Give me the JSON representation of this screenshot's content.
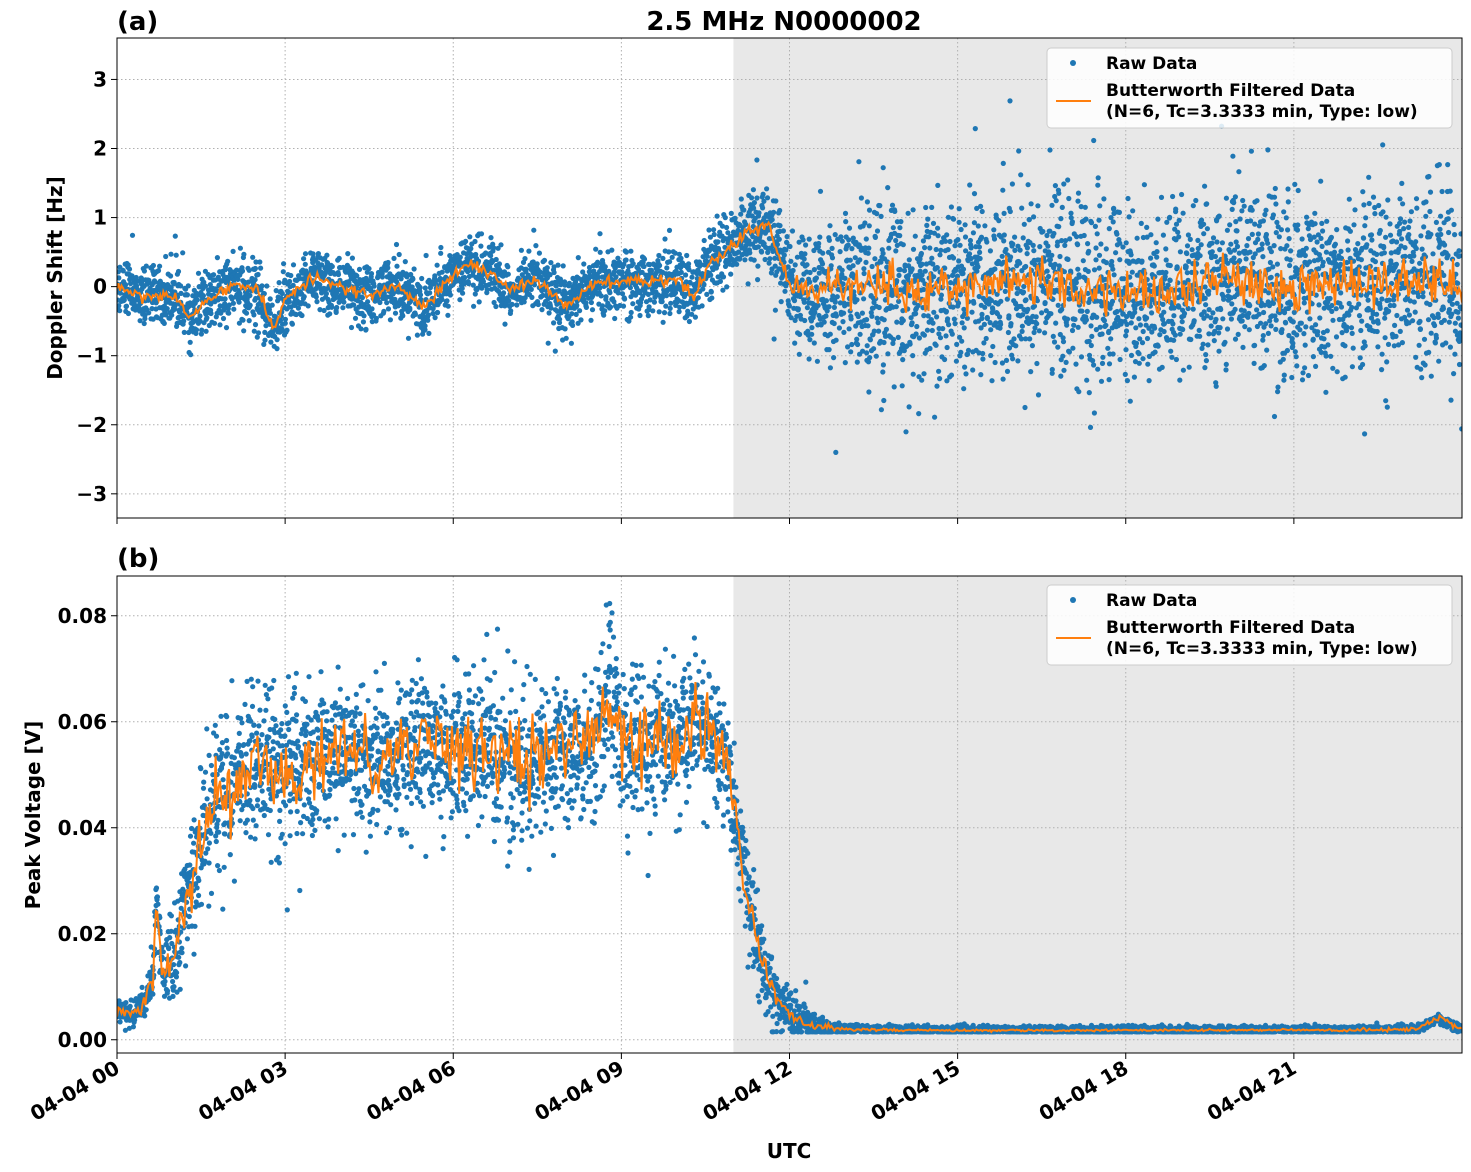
{
  "figure": {
    "title": "2.5 MHz N0000002",
    "xlabel": "UTC",
    "x_tick_labels": [
      "04-04 00",
      "04-04 03",
      "04-04 06",
      "04-04 09",
      "04-04 12",
      "04-04 15",
      "04-04 18",
      "04-04 21"
    ],
    "legend": {
      "raw_label": "Raw Data",
      "filtered_label_line1": "Butterworth Filtered Data",
      "filtered_label_line2": "(N=6, Tc=3.3333 min, Type: low)"
    },
    "colors": {
      "raw": "#1f77b4",
      "filtered": "#ff7f0e",
      "shade": "#e8e8e8"
    }
  },
  "chart_data": [
    {
      "type": "scatter",
      "panel_label": "(a)",
      "ylabel": "Doppler Shift [Hz]",
      "x_unit": "hours UTC since 04-04 00",
      "xlim": [
        0,
        24
      ],
      "ylim": [
        -3.35,
        3.6
      ],
      "yticks": [
        3,
        2,
        1,
        0,
        -1,
        -2,
        -3
      ],
      "ytick_labels": [
        "3",
        "2",
        "1",
        "0",
        "−1",
        "−2",
        "−3"
      ],
      "shaded_x": [
        11,
        24
      ],
      "grid": true,
      "legend_placement": "top-right",
      "series": [
        {
          "name": "Butterworth Filtered Data",
          "style": "line",
          "x": [
            0,
            0.5,
            1,
            1.3,
            1.6,
            2,
            2.5,
            2.8,
            3,
            3.5,
            4,
            4.5,
            5,
            5.5,
            6,
            6.3,
            6.7,
            7,
            7.5,
            8,
            8.5,
            9,
            9.5,
            10,
            10.3,
            10.6,
            11,
            11.3,
            11.6,
            12,
            13,
            14,
            15,
            16,
            17,
            18,
            19,
            20,
            21,
            22,
            23,
            24
          ],
          "y": [
            0,
            -0.15,
            -0.1,
            -0.45,
            -0.2,
            0,
            0,
            -0.65,
            -0.2,
            0.15,
            0,
            -0.1,
            0,
            -0.3,
            0.2,
            0.35,
            0.2,
            -0.05,
            0.1,
            -0.3,
            0.05,
            0.1,
            0.05,
            0.1,
            -0.15,
            0.35,
            0.6,
            0.8,
            0.95,
            0,
            0,
            -0.1,
            0,
            0.05,
            0,
            -0.1,
            0,
            0.1,
            0,
            0.05,
            0.1,
            0
          ],
          "noise_amplitude": [
            0.04,
            0.04,
            0.04,
            0.04,
            0.04,
            0.04,
            0.04,
            0.04,
            0.04,
            0.04,
            0.04,
            0.04,
            0.04,
            0.04,
            0.04,
            0.04,
            0.04,
            0.04,
            0.04,
            0.04,
            0.04,
            0.04,
            0.04,
            0.04,
            0.04,
            0.04,
            0.05,
            0.05,
            0.05,
            0.08,
            0.16,
            0.18,
            0.18,
            0.18,
            0.18,
            0.18,
            0.18,
            0.18,
            0.18,
            0.18,
            0.18,
            0.16
          ]
        },
        {
          "name": "Raw Data",
          "style": "points",
          "spread_x": [
            0,
            11,
            11.7,
            12.2,
            13,
            24
          ],
          "spread_sd": [
            0.22,
            0.22,
            0.3,
            0.45,
            0.65,
            0.65
          ],
          "outlier_range": [
            -3.05,
            3.0
          ]
        }
      ]
    },
    {
      "type": "scatter",
      "panel_label": "(b)",
      "ylabel": "Peak Voltage [V]",
      "x_unit": "hours UTC since 04-04 00",
      "xlim": [
        0,
        24
      ],
      "ylim": [
        -0.0025,
        0.0875
      ],
      "yticks": [
        0,
        0.02,
        0.04,
        0.06,
        0.08
      ],
      "ytick_labels": [
        "0.00",
        "0.02",
        "0.04",
        "0.06",
        "0.08"
      ],
      "shaded_x": [
        11,
        24
      ],
      "grid": true,
      "legend_placement": "top-right",
      "series": [
        {
          "name": "Butterworth Filtered Data",
          "style": "line",
          "x": [
            0,
            0.3,
            0.5,
            0.65,
            0.7,
            0.8,
            1,
            1.3,
            1.6,
            2,
            2.5,
            3,
            3.5,
            4,
            4.5,
            5,
            5.5,
            6,
            6.5,
            7,
            7.5,
            8,
            8.5,
            8.8,
            9,
            9.5,
            10,
            10.3,
            10.6,
            10.9,
            11.2,
            11.5,
            11.8,
            12.2,
            12.6,
            13,
            14,
            16,
            18,
            20,
            22,
            23.2,
            23.6,
            24
          ],
          "y": [
            0.005,
            0.005,
            0.007,
            0.012,
            0.028,
            0.013,
            0.015,
            0.03,
            0.042,
            0.048,
            0.052,
            0.05,
            0.053,
            0.055,
            0.052,
            0.054,
            0.056,
            0.054,
            0.055,
            0.052,
            0.053,
            0.054,
            0.055,
            0.065,
            0.057,
            0.056,
            0.057,
            0.06,
            0.058,
            0.052,
            0.03,
            0.015,
            0.007,
            0.003,
            0.0025,
            0.002,
            0.0018,
            0.0018,
            0.0018,
            0.0018,
            0.0018,
            0.002,
            0.004,
            0.002
          ],
          "noise_amplitude": [
            0.0008,
            0.0008,
            0.001,
            0.0015,
            0.001,
            0.0015,
            0.002,
            0.003,
            0.004,
            0.004,
            0.004,
            0.004,
            0.004,
            0.004,
            0.004,
            0.004,
            0.004,
            0.004,
            0.004,
            0.004,
            0.004,
            0.004,
            0.004,
            0.003,
            0.004,
            0.004,
            0.004,
            0.004,
            0.004,
            0.003,
            0.002,
            0.001,
            0.0008,
            0.0004,
            0.0003,
            0.0002,
            0.0001,
            0.0001,
            0.0001,
            0.0001,
            0.0001,
            0.0002,
            0.0004,
            0.0002
          ]
        },
        {
          "name": "Raw Data",
          "style": "points",
          "spread_x": [
            0,
            0.5,
            1,
            1.5,
            2,
            3,
            9,
            10.8,
            11.2,
            11.8,
            12.3,
            13,
            24
          ],
          "spread_sd": [
            0.0012,
            0.0015,
            0.004,
            0.007,
            0.007,
            0.007,
            0.007,
            0.006,
            0.005,
            0.003,
            0.0015,
            0.0004,
            0.0004
          ],
          "outlier_range": [
            0.0015,
            0.0835
          ]
        }
      ]
    }
  ]
}
